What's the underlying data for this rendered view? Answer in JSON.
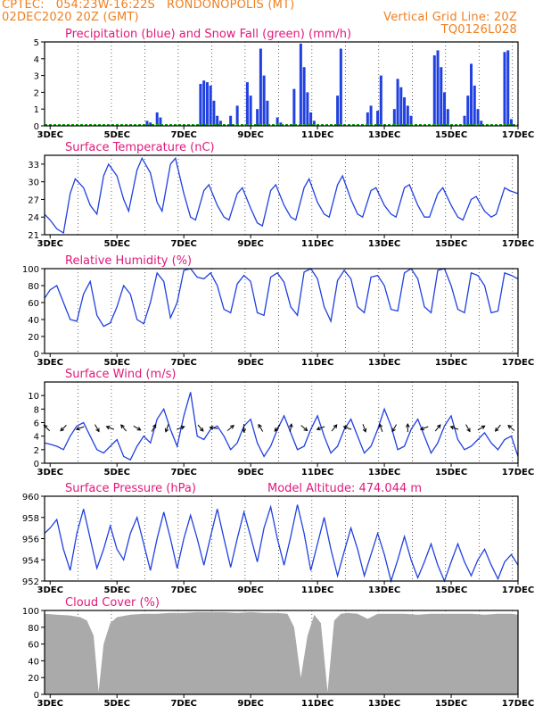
{
  "header": {
    "line1": "CPTEC:   054:23W-16:22S   RONDONOPOLIS (MT)",
    "line2": "02DEC2020 20Z (GMT)",
    "grid_note": "Vertical Grid Line: 20Z",
    "code": "TQ0126L028"
  },
  "x_axis": {
    "ticks": [
      "3DEC",
      "5DEC",
      "7DEC",
      "9DEC",
      "11DEC",
      "13DEC",
      "15DEC",
      "17DEC"
    ],
    "tick_days": [
      3,
      5,
      7,
      9,
      11,
      13,
      15,
      17
    ],
    "range_days": [
      2.8333,
      17.0
    ]
  },
  "colors": {
    "blue": "#2040e0",
    "green": "#10a010",
    "magenta": "#e0197a",
    "orange": "#f07f1f",
    "gray": "#aaaaaa"
  },
  "chart_data": [
    {
      "type": "bar",
      "title": "Precipitation (blue) and Snow Fall (green) (mm/h)",
      "ylim": [
        0,
        5
      ],
      "yticks": [
        "0",
        "1",
        "2",
        "3",
        "4",
        "5"
      ],
      "series": [
        {
          "name": "Precipitation",
          "x": [
            5.9,
            6.0,
            6.2,
            6.3,
            7.5,
            7.6,
            7.7,
            7.8,
            7.9,
            8.0,
            8.1,
            8.4,
            8.6,
            8.9,
            9.0,
            9.2,
            9.3,
            9.4,
            9.5,
            9.8,
            9.9,
            10.3,
            10.5,
            10.6,
            10.7,
            10.8,
            10.9,
            11.6,
            11.7,
            12.5,
            12.6,
            12.8,
            12.9,
            13.3,
            13.4,
            13.5,
            13.6,
            13.7,
            13.8,
            14.5,
            14.6,
            14.7,
            14.8,
            14.9,
            15.4,
            15.5,
            15.6,
            15.7,
            15.8,
            15.9,
            16.6,
            16.7,
            16.8
          ],
          "values": [
            0.3,
            0.2,
            0.8,
            0.5,
            2.5,
            2.7,
            2.6,
            2.4,
            1.5,
            0.6,
            0.3,
            0.6,
            1.2,
            2.6,
            1.8,
            1.0,
            4.6,
            3.0,
            1.5,
            0.5,
            0.2,
            2.2,
            4.9,
            3.5,
            2.0,
            0.8,
            0.3,
            1.8,
            4.6,
            0.8,
            1.2,
            0.9,
            3.0,
            1.0,
            2.8,
            2.3,
            1.7,
            1.2,
            0.6,
            4.2,
            4.5,
            3.5,
            2.0,
            1.0,
            0.6,
            1.8,
            3.7,
            2.4,
            1.0,
            0.3,
            4.4,
            4.5,
            0.4
          ]
        },
        {
          "name": "Snow Fall",
          "x": [],
          "values": []
        }
      ]
    },
    {
      "type": "line",
      "title": "Surface Temperature (nC)",
      "ylim": [
        21,
        34.5
      ],
      "yticks": [
        "21",
        "24",
        "27",
        "30",
        "33"
      ],
      "x": [
        2.83,
        3.0,
        3.2,
        3.4,
        3.6,
        3.75,
        4.0,
        4.2,
        4.4,
        4.6,
        4.75,
        5.0,
        5.2,
        5.35,
        5.6,
        5.75,
        6.0,
        6.2,
        6.35,
        6.6,
        6.75,
        7.0,
        7.2,
        7.35,
        7.6,
        7.75,
        8.0,
        8.2,
        8.35,
        8.6,
        8.75,
        9.0,
        9.2,
        9.35,
        9.6,
        9.75,
        10.0,
        10.2,
        10.35,
        10.6,
        10.75,
        11.0,
        11.2,
        11.35,
        11.6,
        11.75,
        12.0,
        12.2,
        12.35,
        12.6,
        12.75,
        13.0,
        13.2,
        13.35,
        13.6,
        13.75,
        14.0,
        14.2,
        14.35,
        14.6,
        14.75,
        15.0,
        15.2,
        15.35,
        15.6,
        15.75,
        16.0,
        16.2,
        16.35,
        16.6,
        16.75,
        17.0
      ],
      "values": [
        24.5,
        23.5,
        22.0,
        21.3,
        28.0,
        30.5,
        29.0,
        26.0,
        24.5,
        31.0,
        33.0,
        31.0,
        27.0,
        25.0,
        32.0,
        34.0,
        31.5,
        26.5,
        25.0,
        33.0,
        34.0,
        28.0,
        24.0,
        23.5,
        28.5,
        29.5,
        26.0,
        24.0,
        23.5,
        28.0,
        29.0,
        25.5,
        23.0,
        22.5,
        28.5,
        29.5,
        26.0,
        24.0,
        23.5,
        29.0,
        30.5,
        26.5,
        24.5,
        24.0,
        29.5,
        31.0,
        27.0,
        24.5,
        24.0,
        28.5,
        29.0,
        26.0,
        24.5,
        24.0,
        29.0,
        29.5,
        26.0,
        24.0,
        24.0,
        28.0,
        29.0,
        26.0,
        24.0,
        23.5,
        27.0,
        27.5,
        25.0,
        24.0,
        24.5,
        29.0,
        28.5,
        28.0
      ]
    },
    {
      "type": "line",
      "title": "Relative Humidity (%)",
      "ylim": [
        0,
        100
      ],
      "yticks": [
        "0",
        "20",
        "40",
        "60",
        "80",
        "100"
      ],
      "x": [
        2.83,
        3.0,
        3.2,
        3.4,
        3.6,
        3.8,
        4.0,
        4.2,
        4.4,
        4.6,
        4.8,
        5.0,
        5.2,
        5.4,
        5.6,
        5.8,
        6.0,
        6.2,
        6.4,
        6.6,
        6.8,
        7.0,
        7.2,
        7.4,
        7.6,
        7.8,
        8.0,
        8.2,
        8.4,
        8.6,
        8.8,
        9.0,
        9.2,
        9.4,
        9.6,
        9.8,
        10.0,
        10.2,
        10.4,
        10.6,
        10.8,
        11.0,
        11.2,
        11.4,
        11.6,
        11.8,
        12.0,
        12.2,
        12.4,
        12.6,
        12.8,
        13.0,
        13.2,
        13.4,
        13.6,
        13.8,
        14.0,
        14.2,
        14.4,
        14.6,
        14.8,
        15.0,
        15.2,
        15.4,
        15.6,
        15.8,
        16.0,
        16.2,
        16.4,
        16.6,
        16.8,
        17.0
      ],
      "values": [
        65,
        75,
        80,
        60,
        40,
        38,
        70,
        85,
        45,
        32,
        36,
        55,
        80,
        70,
        40,
        35,
        60,
        95,
        85,
        42,
        60,
        98,
        100,
        90,
        88,
        95,
        80,
        52,
        48,
        82,
        92,
        85,
        48,
        45,
        90,
        95,
        84,
        55,
        45,
        96,
        100,
        88,
        55,
        38,
        86,
        98,
        88,
        55,
        48,
        90,
        92,
        80,
        52,
        50,
        95,
        100,
        88,
        55,
        48,
        98,
        100,
        80,
        52,
        48,
        95,
        92,
        80,
        48,
        50,
        95,
        92,
        88
      ]
    },
    {
      "type": "line",
      "title": "Surface Wind (m/s)",
      "ylim": [
        0,
        12
      ],
      "yticks": [
        "0",
        "2",
        "4",
        "6",
        "8",
        "10"
      ],
      "x": [
        2.83,
        3.0,
        3.2,
        3.4,
        3.6,
        3.8,
        4.0,
        4.2,
        4.4,
        4.6,
        4.8,
        5.0,
        5.2,
        5.4,
        5.6,
        5.8,
        6.0,
        6.2,
        6.4,
        6.6,
        6.8,
        7.0,
        7.2,
        7.4,
        7.6,
        7.8,
        8.0,
        8.2,
        8.4,
        8.6,
        8.8,
        9.0,
        9.2,
        9.4,
        9.6,
        9.8,
        10.0,
        10.2,
        10.4,
        10.6,
        10.8,
        11.0,
        11.2,
        11.4,
        11.6,
        11.8,
        12.0,
        12.2,
        12.4,
        12.6,
        12.8,
        13.0,
        13.2,
        13.4,
        13.6,
        13.8,
        14.0,
        14.2,
        14.4,
        14.6,
        14.8,
        15.0,
        15.2,
        15.4,
        15.6,
        15.8,
        16.0,
        16.2,
        16.4,
        16.6,
        16.8,
        17.0
      ],
      "values": [
        3.0,
        2.8,
        2.5,
        2.0,
        4.0,
        5.5,
        6.0,
        4.0,
        2.0,
        1.5,
        2.5,
        3.5,
        1.0,
        0.5,
        2.5,
        4.0,
        3.0,
        6.5,
        8.0,
        5.0,
        2.5,
        7.0,
        10.5,
        4.0,
        3.5,
        5.0,
        5.5,
        4.0,
        2.0,
        3.0,
        5.5,
        6.5,
        3.0,
        1.0,
        2.5,
        5.0,
        7.0,
        4.5,
        2.0,
        2.5,
        5.0,
        7.0,
        4.0,
        1.5,
        2.5,
        5.0,
        6.5,
        4.0,
        1.5,
        2.5,
        5.0,
        8.0,
        5.5,
        2.0,
        2.5,
        5.0,
        6.5,
        4.0,
        1.5,
        3.0,
        5.5,
        7.0,
        3.5,
        2.0,
        2.5,
        3.5,
        4.5,
        3.0,
        2.0,
        3.5,
        4.0,
        1.0
      ],
      "arrows": {
        "x": [
          2.9,
          3.4,
          3.9,
          4.4,
          4.8,
          5.2,
          5.6,
          6.1,
          6.5,
          6.9,
          7.5,
          7.9,
          8.4,
          8.8,
          9.3,
          9.8,
          10.2,
          10.6,
          11.1,
          11.5,
          11.9,
          12.4,
          12.9,
          13.3,
          13.7,
          14.2,
          14.6,
          15.1,
          15.5,
          15.9,
          16.4,
          16.8
        ],
        "dir_deg": [
          135,
          225,
          200,
          300,
          160,
          130,
          330,
          60,
          250,
          20,
          310,
          170,
          40,
          270,
          120,
          230,
          80,
          320,
          200,
          50,
          160,
          290,
          110,
          240,
          90,
          200,
          50,
          160,
          300,
          30,
          230,
          140
        ]
      }
    },
    {
      "type": "line",
      "title": "Surface Pressure (hPa)",
      "annotation": "Model Altitude: 474.044 m",
      "ylim": [
        952,
        960
      ],
      "yticks": [
        "952",
        "954",
        "956",
        "958",
        "960"
      ],
      "x": [
        2.83,
        3.0,
        3.2,
        3.4,
        3.6,
        3.8,
        4.0,
        4.2,
        4.4,
        4.6,
        4.8,
        5.0,
        5.2,
        5.4,
        5.6,
        5.8,
        6.0,
        6.2,
        6.4,
        6.6,
        6.8,
        7.0,
        7.2,
        7.4,
        7.6,
        7.8,
        8.0,
        8.2,
        8.4,
        8.6,
        8.8,
        9.0,
        9.2,
        9.4,
        9.6,
        9.8,
        10.0,
        10.2,
        10.4,
        10.6,
        10.8,
        11.0,
        11.2,
        11.4,
        11.6,
        11.8,
        12.0,
        12.2,
        12.4,
        12.6,
        12.8,
        13.0,
        13.2,
        13.4,
        13.6,
        13.8,
        14.0,
        14.2,
        14.4,
        14.6,
        14.8,
        15.0,
        15.2,
        15.4,
        15.6,
        15.8,
        16.0,
        16.2,
        16.4,
        16.6,
        16.8,
        17.0
      ],
      "values": [
        956.5,
        957.0,
        957.8,
        955.0,
        953.0,
        956.5,
        958.8,
        956.0,
        953.2,
        955.0,
        957.2,
        955.0,
        954.0,
        956.5,
        958.0,
        955.5,
        953.0,
        956.0,
        958.5,
        956.0,
        953.2,
        956.0,
        958.2,
        956.0,
        953.5,
        956.2,
        958.8,
        956.0,
        953.3,
        956.0,
        958.5,
        956.2,
        953.8,
        957.0,
        959.0,
        956.0,
        953.5,
        956.2,
        959.2,
        956.5,
        953.0,
        955.5,
        958.0,
        955.0,
        952.5,
        954.8,
        957.0,
        955.0,
        952.5,
        954.5,
        956.5,
        954.5,
        952.0,
        954.0,
        956.2,
        954.0,
        952.3,
        953.8,
        955.5,
        953.5,
        952.0,
        953.8,
        955.5,
        953.8,
        952.5,
        954.0,
        955.0,
        953.5,
        952.2,
        953.8,
        954.5,
        953.5
      ]
    },
    {
      "type": "area",
      "title": "Cloud Cover (%)",
      "ylim": [
        0,
        100
      ],
      "yticks": [
        "0",
        "20",
        "40",
        "60",
        "80",
        "100"
      ],
      "x": [
        2.83,
        3.2,
        3.6,
        3.9,
        4.1,
        4.3,
        4.45,
        4.6,
        4.8,
        5.0,
        5.4,
        5.8,
        6.2,
        6.6,
        7.0,
        7.4,
        7.8,
        8.2,
        8.6,
        9.0,
        9.4,
        9.8,
        10.1,
        10.3,
        10.5,
        10.7,
        10.9,
        11.1,
        11.3,
        11.5,
        11.7,
        11.9,
        12.2,
        12.5,
        12.8,
        13.2,
        13.6,
        14.0,
        14.4,
        14.8,
        15.2,
        15.6,
        16.0,
        16.4,
        16.8,
        17.0
      ],
      "values": [
        96,
        95,
        94,
        92,
        88,
        70,
        3,
        60,
        85,
        92,
        95,
        96,
        96,
        97,
        97,
        98,
        98,
        98,
        97,
        98,
        97,
        97,
        96,
        80,
        20,
        70,
        95,
        85,
        3,
        88,
        96,
        97,
        96,
        90,
        96,
        96,
        96,
        95,
        96,
        96,
        96,
        96,
        95,
        96,
        96,
        95
      ]
    }
  ]
}
